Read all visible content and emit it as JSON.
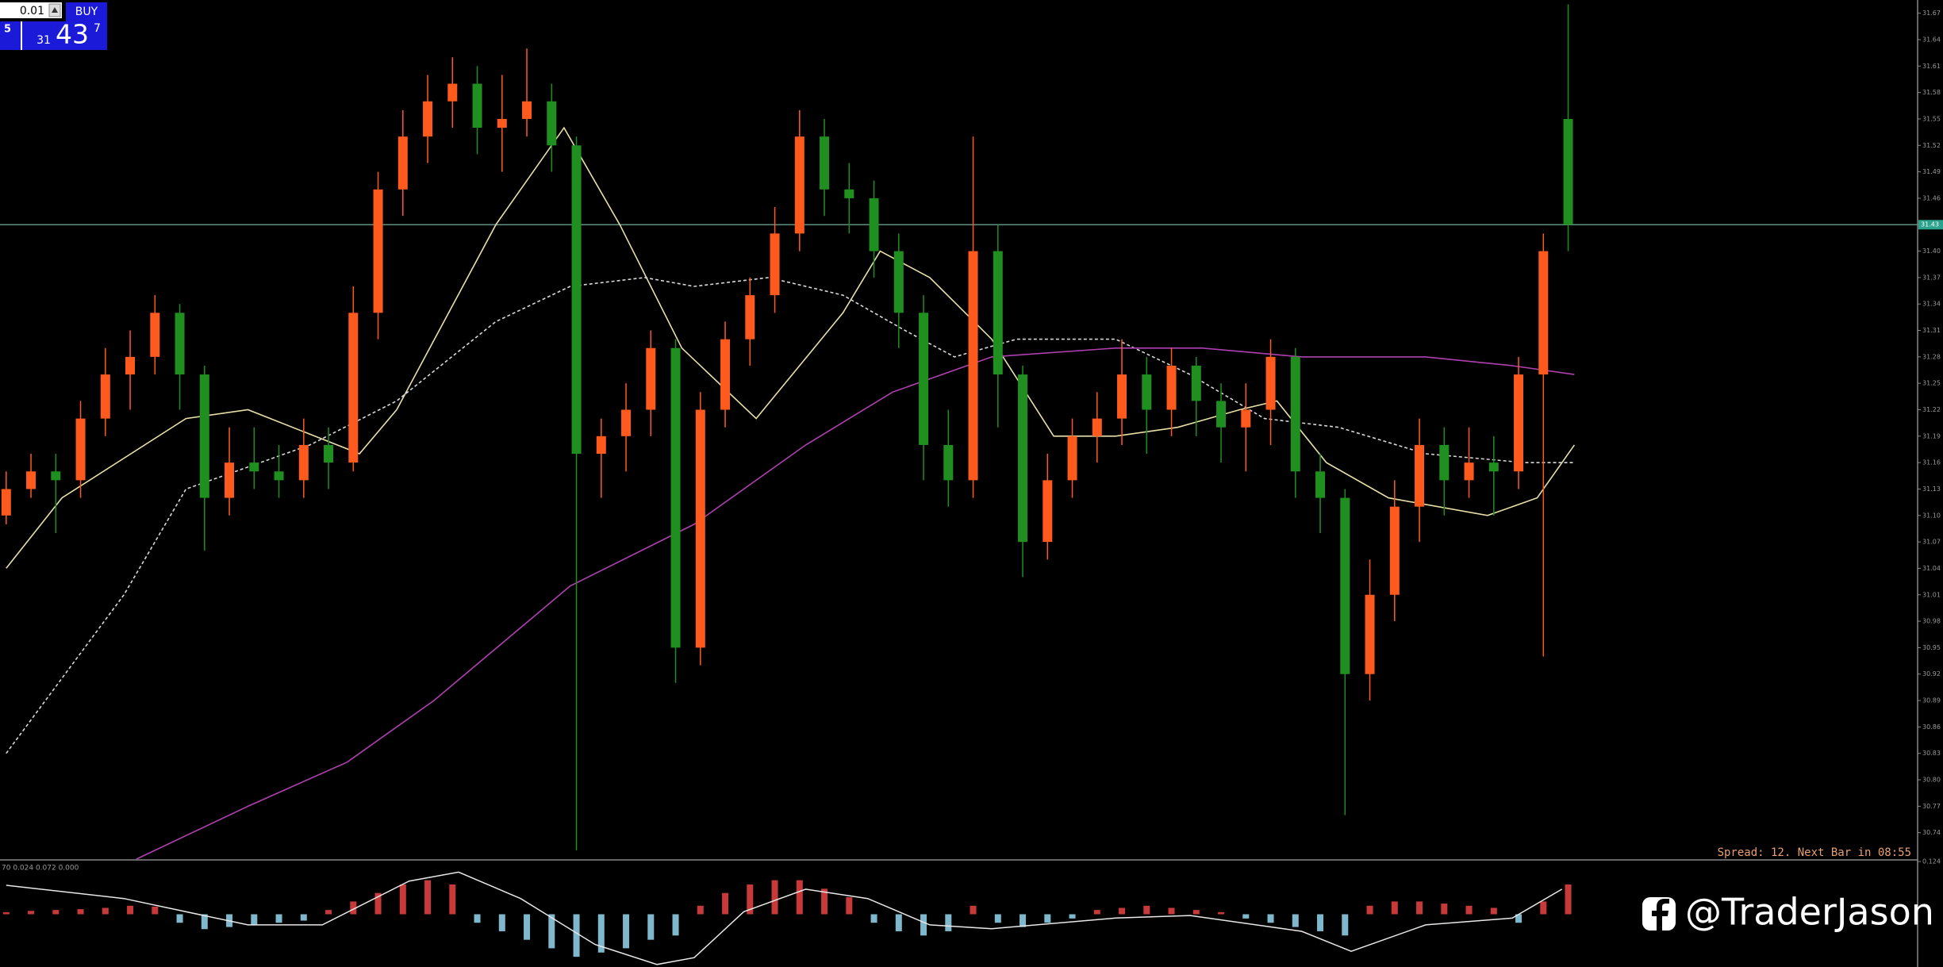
{
  "trade_panel": {
    "lot": "0.01",
    "buy": "BUY",
    "bid_digit": "5",
    "price_prefix": "31",
    "price_main": "43",
    "price_sup": "7"
  },
  "watermark": "@TraderJason",
  "chart_data": [
    {
      "type": "candlestick",
      "status": "Spread: 12. Next Bar in 08:55",
      "current_price": 31.43,
      "ylim": [
        30.71,
        31.685
      ],
      "yticks": [
        31.67,
        31.64,
        31.61,
        31.58,
        31.55,
        31.52,
        31.49,
        31.46,
        31.43,
        {
          "value": 31.4,
          "label": "31.40"
        },
        31.37,
        31.34,
        31.31,
        31.28,
        31.25,
        31.22,
        31.19,
        31.16,
        31.13,
        {
          "value": 31.1,
          "label": "31.10"
        },
        31.07,
        31.04,
        31.01,
        30.98,
        30.95,
        30.92,
        30.89,
        30.86,
        30.83,
        {
          "value": 30.8,
          "label": "30.80"
        },
        30.77,
        30.74
      ],
      "up_color": "#ff5a1e",
      "down_color": "#1f8f1f",
      "open": [
        31.1,
        31.13,
        31.15,
        31.14,
        31.21,
        31.26,
        31.28,
        31.33,
        31.26,
        31.12,
        31.16,
        31.15,
        31.14,
        31.18,
        31.16,
        31.33,
        31.47,
        31.53,
        31.57,
        31.59,
        31.54,
        31.55,
        31.57,
        31.52,
        31.17,
        31.19,
        31.22,
        31.29,
        30.95,
        31.22,
        31.3,
        31.35,
        31.42,
        31.53,
        31.47,
        31.46,
        31.4,
        31.33,
        31.18,
        31.14,
        31.4,
        31.26,
        31.07,
        31.14,
        31.19,
        31.21,
        31.26,
        31.22,
        31.27,
        31.23,
        31.2,
        31.22,
        31.28,
        31.15,
        31.12,
        30.92,
        31.01,
        31.11,
        31.18,
        31.14,
        31.16,
        31.15,
        31.26,
        31.55
      ],
      "high": [
        31.15,
        31.17,
        31.17,
        31.23,
        31.29,
        31.31,
        31.35,
        31.34,
        31.27,
        31.2,
        31.2,
        31.18,
        31.21,
        31.2,
        31.36,
        31.49,
        31.56,
        31.6,
        31.62,
        31.61,
        31.6,
        31.63,
        31.59,
        31.53,
        31.21,
        31.25,
        31.31,
        31.3,
        31.24,
        31.32,
        31.37,
        31.45,
        31.56,
        31.55,
        31.5,
        31.48,
        31.42,
        31.35,
        31.22,
        31.53,
        31.43,
        31.27,
        31.17,
        31.21,
        31.24,
        31.3,
        31.28,
        31.29,
        31.28,
        31.25,
        31.25,
        31.3,
        31.29,
        31.17,
        31.13,
        31.05,
        31.14,
        31.21,
        31.2,
        31.2,
        31.19,
        31.28,
        31.42,
        31.68
      ],
      "low": [
        31.09,
        31.12,
        31.08,
        31.12,
        31.19,
        31.22,
        31.26,
        31.22,
        31.06,
        31.1,
        31.13,
        31.12,
        31.12,
        31.13,
        31.15,
        31.3,
        31.44,
        31.5,
        31.54,
        31.51,
        31.49,
        31.53,
        31.49,
        30.72,
        31.12,
        31.15,
        31.19,
        30.91,
        30.93,
        31.2,
        31.27,
        31.33,
        31.4,
        31.44,
        31.42,
        31.37,
        31.29,
        31.14,
        31.11,
        31.12,
        31.2,
        31.03,
        31.05,
        31.12,
        31.16,
        31.18,
        31.17,
        31.19,
        31.19,
        31.16,
        31.15,
        31.18,
        31.12,
        31.08,
        30.76,
        30.89,
        30.98,
        31.07,
        31.1,
        31.12,
        31.1,
        31.13,
        30.94,
        31.4
      ],
      "close": [
        31.13,
        31.15,
        31.14,
        31.21,
        31.26,
        31.28,
        31.33,
        31.26,
        31.12,
        31.16,
        31.15,
        31.14,
        31.18,
        31.16,
        31.33,
        31.47,
        31.53,
        31.57,
        31.59,
        31.54,
        31.55,
        31.57,
        31.52,
        31.17,
        31.19,
        31.22,
        31.29,
        30.95,
        31.22,
        31.3,
        31.35,
        31.42,
        31.53,
        31.47,
        31.46,
        31.4,
        31.33,
        31.18,
        31.14,
        31.4,
        31.26,
        31.07,
        31.14,
        31.19,
        31.21,
        31.26,
        31.22,
        31.27,
        31.23,
        31.2,
        31.22,
        31.28,
        31.15,
        31.12,
        30.92,
        31.01,
        31.11,
        31.18,
        31.14,
        31.16,
        31.15,
        31.26,
        31.4,
        31.43
      ],
      "lines": [
        {
          "color": "#e8e0a8",
          "dashed": false,
          "x": [
            0,
            2.25,
            7.25,
            9.75,
            14.25,
            15.75,
            19.75,
            22.5,
            24.75,
            27.25,
            30.25,
            33.75,
            35.25,
            37.25,
            39.75,
            42.25,
            44.75,
            47.25,
            49.75,
            51.25,
            53.25,
            55.75,
            59.75,
            61.75,
            63.25
          ],
          "values": [
            31.04,
            31.12,
            31.21,
            31.22,
            31.17,
            31.22,
            31.43,
            31.54,
            31.43,
            31.29,
            31.21,
            31.33,
            31.4,
            31.37,
            31.3,
            31.19,
            31.19,
            31.2,
            31.22,
            31.23,
            31.16,
            31.12,
            31.1,
            31.12,
            31.18
          ]
        },
        {
          "color": "#d8d8d8",
          "dashed": true,
          "x": [
            0,
            4.75,
            7.25,
            12.25,
            15.75,
            19.75,
            22.75,
            25.75,
            27.75,
            30.75,
            33.75,
            36.25,
            38.25,
            40.75,
            44.75,
            47.75,
            50.75,
            53.75,
            57.25,
            61.25,
            63.25
          ],
          "values": [
            30.83,
            31.01,
            31.13,
            31.18,
            31.23,
            31.32,
            31.36,
            31.37,
            31.36,
            31.37,
            31.35,
            31.31,
            31.28,
            31.3,
            31.3,
            31.26,
            31.21,
            31.2,
            31.17,
            31.16,
            31.16
          ]
        },
        {
          "color": "#b040b0",
          "dashed": false,
          "x": [
            5.25,
            9.75,
            13.75,
            17.25,
            22.75,
            27.75,
            32.25,
            35.75,
            39.75,
            44.75,
            48.25,
            52.25,
            57.25,
            60.75,
            63.25
          ],
          "values": [
            30.71,
            30.77,
            30.82,
            30.89,
            31.02,
            31.09,
            31.18,
            31.24,
            31.28,
            31.29,
            31.29,
            31.28,
            31.28,
            31.27,
            31.26
          ]
        }
      ]
    },
    {
      "type": "macd",
      "header": "70 0.024 0.072 0.000",
      "ylim": [
        -0.124,
        0.124
      ],
      "yticks": [
        0.124
      ],
      "colors": {
        "positive": "#c83a3a",
        "negative": "#7fb8cc",
        "line": "#e8e8e8"
      },
      "values": [
        0.005,
        0.008,
        0.01,
        0.012,
        0.015,
        0.02,
        0.018,
        -0.02,
        -0.035,
        -0.03,
        -0.025,
        -0.02,
        -0.015,
        0.01,
        0.03,
        0.05,
        0.07,
        0.08,
        0.07,
        -0.02,
        -0.04,
        -0.06,
        -0.08,
        -0.1,
        -0.09,
        -0.08,
        -0.06,
        -0.05,
        0.02,
        0.05,
        0.07,
        0.08,
        0.08,
        0.06,
        0.04,
        -0.02,
        -0.04,
        -0.05,
        -0.04,
        0.02,
        -0.02,
        -0.03,
        -0.02,
        -0.01,
        0.01,
        0.015,
        0.02,
        0.015,
        0.01,
        0.005,
        -0.01,
        -0.02,
        -0.03,
        -0.04,
        -0.05,
        0.02,
        0.03,
        0.03,
        0.025,
        0.02,
        0.015,
        -0.02,
        0.03,
        0.07
      ],
      "line": {
        "x": [
          0,
          4.75,
          9.75,
          12.75,
          16.25,
          18.25,
          20.75,
          23.75,
          26.25,
          27.75,
          29.75,
          32.25,
          34.75,
          37.25,
          39.75,
          44.75,
          47.75,
          52.25,
          54.25,
          57.25,
          60.75,
          62.75
        ],
        "values": [
          0.068,
          0.037,
          -0.025,
          -0.025,
          0.078,
          0.099,
          0.037,
          -0.071,
          -0.118,
          -0.102,
          0.006,
          0.059,
          0.037,
          -0.025,
          -0.034,
          -0.009,
          -0.003,
          -0.04,
          -0.087,
          -0.025,
          -0.009,
          0.059
        ]
      }
    }
  ]
}
